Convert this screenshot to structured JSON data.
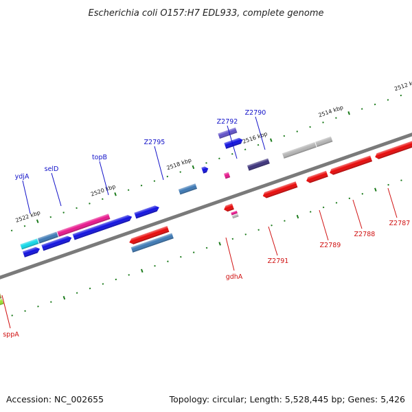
{
  "map": {
    "title": "Escherichia coli O157:H7 EDL933, complete genome",
    "footer": {
      "accession": "Accession: NC_002655",
      "info": "Topology: circular; Length: 5,528,445 bp; Genes: 5,426"
    },
    "tick_labels": [
      "2512 kbp",
      "2514 kbp",
      "2516 kbp",
      "2518 kbp",
      "2520 kbp",
      "2522 kbp"
    ],
    "colors": {
      "backbone": "#7a7a7a",
      "tick": "#1a7a1a",
      "forward_label": "#1010c8",
      "reverse_label": "#d01010",
      "blue": "#1010e0",
      "red": "#e80808",
      "cyan": "#10d8e8",
      "steel": "#3c78b4",
      "pink": "#e8168c",
      "purple": "#6050c8",
      "navy": "#3a307a",
      "grey": "#b4b4b4",
      "olive": "#a8a04a",
      "lime": "#9ae030"
    },
    "forward_genes": [
      "ydjA",
      "selD",
      "topB",
      "Z2795",
      "Z2792",
      "Z2790"
    ],
    "reverse_genes": [
      "sppA",
      "gdhA",
      "Z2791",
      "Z2789",
      "Z2788",
      "Z2787"
    ]
  }
}
